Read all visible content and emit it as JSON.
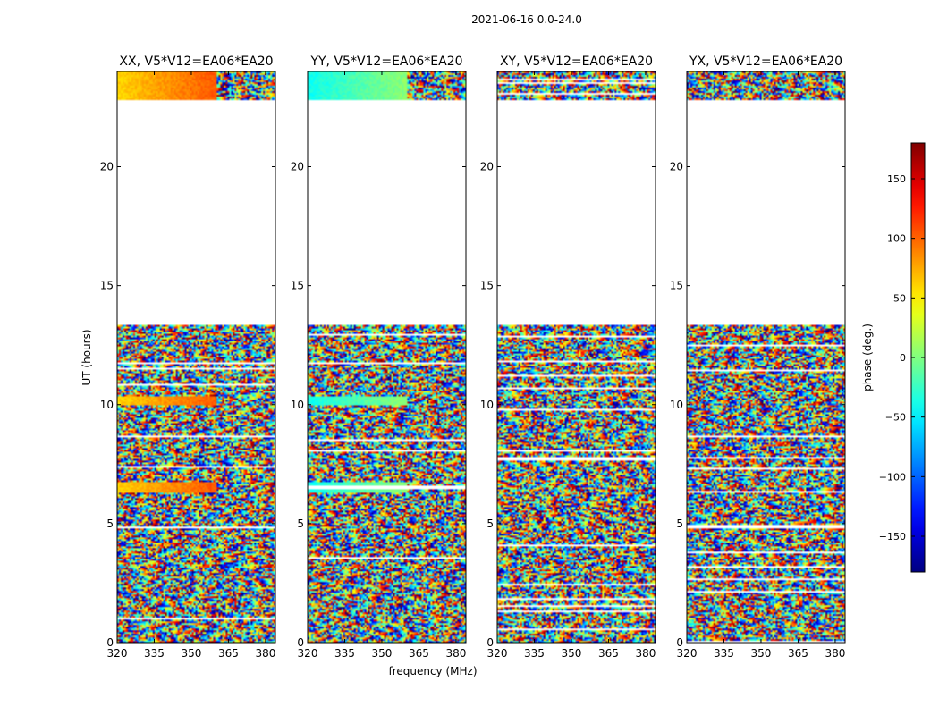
{
  "figure": {
    "suptitle": "2021-06-16 0.0-24.0",
    "xlabel": "frequency (MHz)",
    "ylabel": "UT (hours)"
  },
  "colorbar": {
    "label": "phase (deg.)",
    "range": [
      -180,
      180
    ],
    "ticks": [
      150,
      100,
      50,
      0,
      -50,
      -100,
      -150
    ],
    "tick_labels": [
      "150",
      "100",
      "50",
      "0",
      "−50",
      "−100",
      "−150"
    ],
    "colormap": "jet"
  },
  "chart_data": [
    {
      "type": "heatmap",
      "title": "XX, V5*V12=EA06*EA20",
      "xlabel": "frequency (MHz)",
      "ylabel": "UT (hours)",
      "x_range": [
        320,
        384
      ],
      "y_range": [
        0,
        24
      ],
      "x_ticks": [
        320,
        335,
        350,
        365,
        380
      ],
      "y_ticks": [
        0,
        5,
        10,
        15,
        20
      ],
      "empty_ut_ranges": [
        [
          13.35,
          22.8
        ]
      ],
      "coherent_ut_ranges": [
        [
          6.3,
          6.75
        ],
        [
          10.0,
          10.35
        ],
        [
          22.8,
          24.0
        ]
      ],
      "coherent_phase_deg": 60
    },
    {
      "type": "heatmap",
      "title": "YY, V5*V12=EA06*EA20",
      "xlabel": "frequency (MHz)",
      "ylabel": "",
      "x_range": [
        320,
        384
      ],
      "y_range": [
        0,
        24
      ],
      "x_ticks": [
        320,
        335,
        350,
        365,
        380
      ],
      "y_ticks": [
        0,
        5,
        10,
        15,
        20
      ],
      "empty_ut_ranges": [
        [
          13.35,
          22.8
        ]
      ],
      "coherent_ut_ranges": [
        [
          6.3,
          6.75
        ],
        [
          10.0,
          10.35
        ],
        [
          22.8,
          24.0
        ]
      ],
      "coherent_phase_deg": -40
    },
    {
      "type": "heatmap",
      "title": "XY, V5*V12=EA06*EA20",
      "xlabel": "frequency (MHz)",
      "ylabel": "",
      "x_range": [
        320,
        384
      ],
      "y_range": [
        0,
        24
      ],
      "x_ticks": [
        320,
        335,
        350,
        365,
        380
      ],
      "y_ticks": [
        0,
        5,
        10,
        15,
        20
      ],
      "empty_ut_ranges": [
        [
          13.35,
          22.8
        ]
      ],
      "coherent_ut_ranges": [],
      "coherent_phase_deg": 0
    },
    {
      "type": "heatmap",
      "title": "YX, V5*V12=EA06*EA20",
      "xlabel": "frequency (MHz)",
      "ylabel": "",
      "x_range": [
        320,
        384
      ],
      "y_range": [
        0,
        24
      ],
      "x_ticks": [
        320,
        335,
        350,
        365,
        380
      ],
      "y_ticks": [
        0,
        5,
        10,
        15,
        20
      ],
      "empty_ut_ranges": [
        [
          13.35,
          22.8
        ]
      ],
      "coherent_ut_ranges": [],
      "coherent_phase_deg": 0
    }
  ]
}
